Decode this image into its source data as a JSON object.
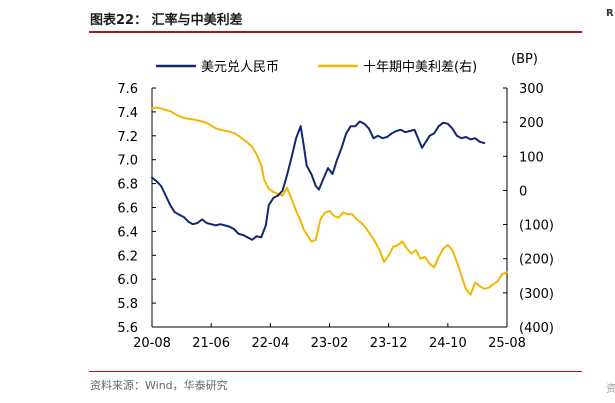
{
  "figure": {
    "title": "图表22： 汇率与中美利差",
    "source": "资料来源：Wind，华泰研究",
    "edge_top": "R",
    "edge_bottom": "资"
  },
  "colors": {
    "navy": "#10286e",
    "gold": "#f2b700",
    "rule": "#b3121a",
    "axis": "#000000"
  },
  "chart_data": {
    "type": "line",
    "title": "汇率与中美利差",
    "legend": "top",
    "grid": false,
    "x": {
      "labels": [
        "20-08",
        "21-06",
        "22-04",
        "23-02",
        "23-12",
        "24-10",
        "25-08"
      ]
    },
    "y_left": {
      "label": "",
      "ylim": [
        5.6,
        7.6
      ],
      "ticks": [
        "7.6",
        "7.4",
        "7.2",
        "7.0",
        "6.8",
        "6.6",
        "6.4",
        "6.2",
        "6.0",
        "5.8",
        "5.6"
      ]
    },
    "y_right": {
      "label": "(BP)",
      "ylim": [
        -400,
        300
      ],
      "ticks": [
        "300",
        "200",
        "100",
        "0",
        "(100)",
        "(200)",
        "(300)",
        "(400)"
      ]
    },
    "series": [
      {
        "name": "美元兑人民币",
        "axis": "left",
        "color": "#10286e",
        "points": [
          [
            0,
            6.85
          ],
          [
            0.6,
            6.82
          ],
          [
            1.2,
            6.78
          ],
          [
            1.8,
            6.7
          ],
          [
            2.4,
            6.62
          ],
          [
            3.0,
            6.56
          ],
          [
            3.6,
            6.54
          ],
          [
            4.2,
            6.52
          ],
          [
            4.8,
            6.48
          ],
          [
            5.4,
            6.46
          ],
          [
            6.0,
            6.47
          ],
          [
            6.6,
            6.5
          ],
          [
            7.2,
            6.47
          ],
          [
            7.8,
            6.46
          ],
          [
            8.4,
            6.45
          ],
          [
            9.0,
            6.46
          ],
          [
            9.6,
            6.45
          ],
          [
            10.2,
            6.44
          ],
          [
            10.8,
            6.42
          ],
          [
            11.4,
            6.38
          ],
          [
            12.0,
            6.37
          ],
          [
            12.6,
            6.35
          ],
          [
            13.2,
            6.33
          ],
          [
            13.8,
            6.36
          ],
          [
            14.4,
            6.35
          ],
          [
            15.0,
            6.45
          ],
          [
            15.4,
            6.62
          ],
          [
            16.0,
            6.68
          ],
          [
            16.6,
            6.7
          ],
          [
            17.2,
            6.74
          ],
          [
            17.8,
            6.87
          ],
          [
            18.4,
            7.02
          ],
          [
            19.0,
            7.18
          ],
          [
            19.6,
            7.28
          ],
          [
            20.0,
            7.12
          ],
          [
            20.4,
            6.95
          ],
          [
            21.0,
            6.88
          ],
          [
            21.6,
            6.78
          ],
          [
            22.0,
            6.75
          ],
          [
            22.6,
            6.84
          ],
          [
            23.2,
            6.93
          ],
          [
            23.8,
            6.88
          ],
          [
            24.4,
            7.0
          ],
          [
            25.0,
            7.1
          ],
          [
            25.6,
            7.22
          ],
          [
            26.2,
            7.28
          ],
          [
            26.8,
            7.28
          ],
          [
            27.4,
            7.32
          ],
          [
            28.0,
            7.3
          ],
          [
            28.6,
            7.26
          ],
          [
            29.2,
            7.18
          ],
          [
            29.8,
            7.2
          ],
          [
            30.4,
            7.18
          ],
          [
            31.0,
            7.19
          ],
          [
            31.6,
            7.22
          ],
          [
            32.2,
            7.24
          ],
          [
            32.8,
            7.25
          ],
          [
            33.4,
            7.23
          ],
          [
            34.0,
            7.24
          ],
          [
            34.6,
            7.25
          ],
          [
            35.2,
            7.16
          ],
          [
            35.6,
            7.1
          ],
          [
            36.0,
            7.14
          ],
          [
            36.6,
            7.2
          ],
          [
            37.2,
            7.22
          ],
          [
            37.8,
            7.28
          ],
          [
            38.4,
            7.31
          ],
          [
            39.0,
            7.3
          ],
          [
            39.6,
            7.26
          ],
          [
            40.2,
            7.2
          ],
          [
            40.8,
            7.18
          ],
          [
            41.4,
            7.19
          ],
          [
            42.0,
            7.17
          ],
          [
            42.6,
            7.18
          ],
          [
            43.2,
            7.15
          ],
          [
            43.8,
            7.14
          ]
        ]
      },
      {
        "name": "十年期中美利差(右)",
        "axis": "right",
        "color": "#f2b700",
        "points": [
          [
            0,
            240
          ],
          [
            0.6,
            243
          ],
          [
            1.2,
            240
          ],
          [
            1.8,
            236
          ],
          [
            2.4,
            232
          ],
          [
            3.0,
            224
          ],
          [
            3.6,
            218
          ],
          [
            4.2,
            212
          ],
          [
            4.8,
            210
          ],
          [
            5.4,
            208
          ],
          [
            6.0,
            205
          ],
          [
            6.6,
            202
          ],
          [
            7.2,
            198
          ],
          [
            7.8,
            190
          ],
          [
            8.4,
            182
          ],
          [
            9.0,
            178
          ],
          [
            9.6,
            175
          ],
          [
            10.2,
            172
          ],
          [
            10.8,
            168
          ],
          [
            11.4,
            160
          ],
          [
            12.0,
            150
          ],
          [
            12.6,
            140
          ],
          [
            13.2,
            128
          ],
          [
            13.8,
            105
          ],
          [
            14.4,
            75
          ],
          [
            14.8,
            30
          ],
          [
            15.4,
            5
          ],
          [
            16.0,
            -5
          ],
          [
            16.6,
            -10
          ],
          [
            17.2,
            -15
          ],
          [
            17.8,
            8
          ],
          [
            18.4,
            -25
          ],
          [
            19.0,
            -60
          ],
          [
            19.6,
            -90
          ],
          [
            20.0,
            -115
          ],
          [
            20.6,
            -135
          ],
          [
            21.0,
            -150
          ],
          [
            21.6,
            -145
          ],
          [
            22.2,
            -85
          ],
          [
            22.8,
            -65
          ],
          [
            23.4,
            -60
          ],
          [
            24.0,
            -75
          ],
          [
            24.6,
            -80
          ],
          [
            25.2,
            -65
          ],
          [
            25.8,
            -70
          ],
          [
            26.4,
            -70
          ],
          [
            27.0,
            -85
          ],
          [
            27.6,
            -95
          ],
          [
            28.2,
            -110
          ],
          [
            28.8,
            -130
          ],
          [
            29.4,
            -150
          ],
          [
            30.0,
            -175
          ],
          [
            30.6,
            -210
          ],
          [
            31.2,
            -190
          ],
          [
            31.8,
            -165
          ],
          [
            32.4,
            -160
          ],
          [
            33.0,
            -150
          ],
          [
            33.6,
            -170
          ],
          [
            34.2,
            -185
          ],
          [
            34.8,
            -175
          ],
          [
            35.4,
            -200
          ],
          [
            36.0,
            -195
          ],
          [
            36.6,
            -215
          ],
          [
            37.2,
            -225
          ],
          [
            37.8,
            -195
          ],
          [
            38.4,
            -170
          ],
          [
            39.0,
            -160
          ],
          [
            39.6,
            -175
          ],
          [
            40.2,
            -210
          ],
          [
            40.8,
            -250
          ],
          [
            41.4,
            -290
          ],
          [
            42.0,
            -305
          ],
          [
            42.6,
            -270
          ],
          [
            43.2,
            -280
          ],
          [
            43.8,
            -288
          ],
          [
            44.4,
            -285
          ],
          [
            45.0,
            -275
          ],
          [
            45.6,
            -265
          ],
          [
            46.2,
            -245
          ],
          [
            46.8,
            -240
          ]
        ]
      }
    ]
  }
}
